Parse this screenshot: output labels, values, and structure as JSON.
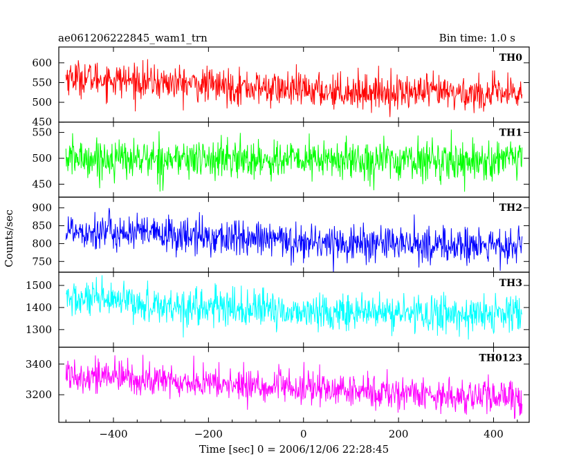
{
  "header": {
    "left": "ae061206222845_wam1_trn",
    "right": "Bin time: 1.0 s"
  },
  "chart_data": {
    "type": "line",
    "xlabel": "Time [sec] 0 = 2006/12/06 22:28:45",
    "ylabel": "Counts/sec",
    "xlim": [
      -515,
      475
    ],
    "x_range": [
      -500,
      460
    ],
    "x_ticks": [
      -400,
      -200,
      0,
      200,
      400
    ],
    "x_tick_labels": [
      "−400",
      "−200",
      "0",
      "200",
      "400"
    ],
    "bin_time_s": 1.0,
    "grid": false,
    "panels": [
      {
        "name": "TH0",
        "color": "#ff0000",
        "ylim": [
          450,
          640
        ],
        "y_ticks": [
          450,
          500,
          550,
          600
        ],
        "y_tick_labels": [
          "450",
          "500",
          "550",
          "600"
        ],
        "trend": [
          [
            -500,
            565
          ],
          [
            -300,
            550
          ],
          [
            0,
            530
          ],
          [
            460,
            520
          ]
        ],
        "scatter": 22
      },
      {
        "name": "TH1",
        "color": "#00ff00",
        "ylim": [
          425,
          570
        ],
        "y_ticks": [
          450,
          500,
          550
        ],
        "y_tick_labels": [
          "450",
          "500",
          "550"
        ],
        "trend": [
          [
            -500,
            500
          ],
          [
            0,
            497
          ],
          [
            460,
            495
          ]
        ],
        "scatter": 19
      },
      {
        "name": "TH2",
        "color": "#0000ff",
        "ylim": [
          720,
          930
        ],
        "y_ticks": [
          750,
          800,
          850,
          900
        ],
        "y_tick_labels": [
          "750",
          "800",
          "850",
          "900"
        ],
        "trend": [
          [
            -500,
            840
          ],
          [
            -300,
            825
          ],
          [
            0,
            805
          ],
          [
            460,
            790
          ]
        ],
        "scatter": 26
      },
      {
        "name": "TH3",
        "color": "#00ffff",
        "ylim": [
          1220,
          1560
        ],
        "y_ticks": [
          1300,
          1400,
          1500
        ],
        "y_tick_labels": [
          "1300",
          "1400",
          "1500"
        ],
        "trend": [
          [
            -500,
            1440
          ],
          [
            -300,
            1410
          ],
          [
            0,
            1380
          ],
          [
            460,
            1365
          ]
        ],
        "scatter": 42
      },
      {
        "name": "TH0123",
        "color": "#ff00ff",
        "ylim": [
          3020,
          3510
        ],
        "y_ticks": [
          3200,
          3400
        ],
        "y_tick_labels": [
          "3200",
          "3400"
        ],
        "trend": [
          [
            -500,
            3340
          ],
          [
            -300,
            3290
          ],
          [
            0,
            3240
          ],
          [
            460,
            3175
          ]
        ],
        "scatter": 55
      }
    ]
  }
}
